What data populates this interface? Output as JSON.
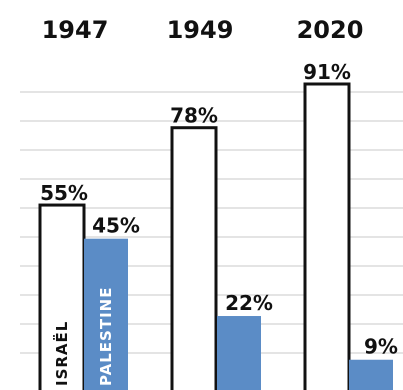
{
  "chart_data": {
    "type": "bar",
    "categories": [
      "1947",
      "1949",
      "2020"
    ],
    "series": [
      {
        "name": "ISRAËL",
        "values": [
          55,
          78,
          91
        ],
        "color": "#ffffff",
        "stroke": "#111111"
      },
      {
        "name": "PALESTINE",
        "values": [
          45,
          22,
          9
        ],
        "color": "#5b8cc6"
      }
    ],
    "data_labels": [
      [
        "55%",
        "78%",
        "91%"
      ],
      [
        "45%",
        "22%",
        "9%"
      ]
    ],
    "ylim": [
      0,
      100
    ],
    "grid": true,
    "legend": "inside-bars"
  }
}
